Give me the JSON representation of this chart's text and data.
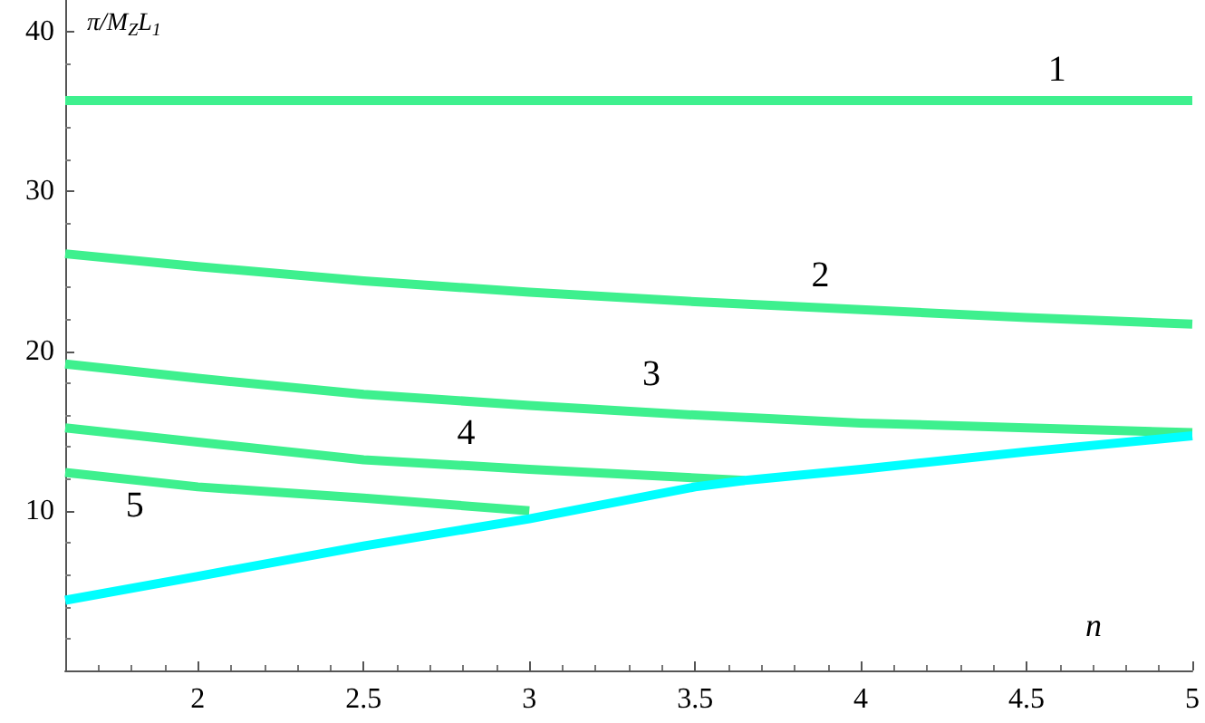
{
  "chart_data": {
    "type": "line",
    "xlabel": "n",
    "ylabel": "π/M$_{Z}$L$_{1}$",
    "xlim": [
      1.6,
      5
    ],
    "xticks": [
      2,
      2.5,
      3,
      3.5,
      4,
      4.5,
      5
    ],
    "ylim": [
      0,
      42
    ],
    "yticks": [
      10,
      20,
      30,
      40
    ],
    "grid": false,
    "marker": "none",
    "line_style": "solid",
    "series": [
      {
        "name": "1",
        "color": "#3ef08e",
        "x": [
          1.6,
          5
        ],
        "values": [
          35.7,
          35.7
        ]
      },
      {
        "name": "2",
        "color": "#3ef08e",
        "x": [
          1.6,
          2,
          2.5,
          3,
          3.5,
          4,
          4.5,
          5
        ],
        "values": [
          26.1,
          25.3,
          24.4,
          23.7,
          23.1,
          22.6,
          22.1,
          21.7
        ]
      },
      {
        "name": "3",
        "color": "#3ef08e",
        "x": [
          1.6,
          2,
          2.5,
          3,
          3.5,
          4,
          4.5,
          5
        ],
        "values": [
          19.2,
          18.3,
          17.3,
          16.6,
          16.0,
          15.5,
          15.2,
          14.9
        ]
      },
      {
        "name": "4",
        "color": "#3ef08e",
        "x": [
          1.6,
          2,
          2.5,
          3,
          3.65
        ],
        "values": [
          15.2,
          14.3,
          13.2,
          12.6,
          11.9
        ]
      },
      {
        "name": "5",
        "color": "#3ef08e",
        "x": [
          1.6,
          2,
          2.5,
          3
        ],
        "values": [
          12.4,
          11.5,
          10.8,
          10.0
        ]
      },
      {
        "color": "#00ffff",
        "x": [
          1.6,
          2,
          2.5,
          3,
          3.5,
          3.65,
          4,
          4.5,
          5
        ],
        "values": [
          4.4,
          5.9,
          7.8,
          9.5,
          11.5,
          11.9,
          12.6,
          13.7,
          14.7
        ]
      }
    ]
  }
}
